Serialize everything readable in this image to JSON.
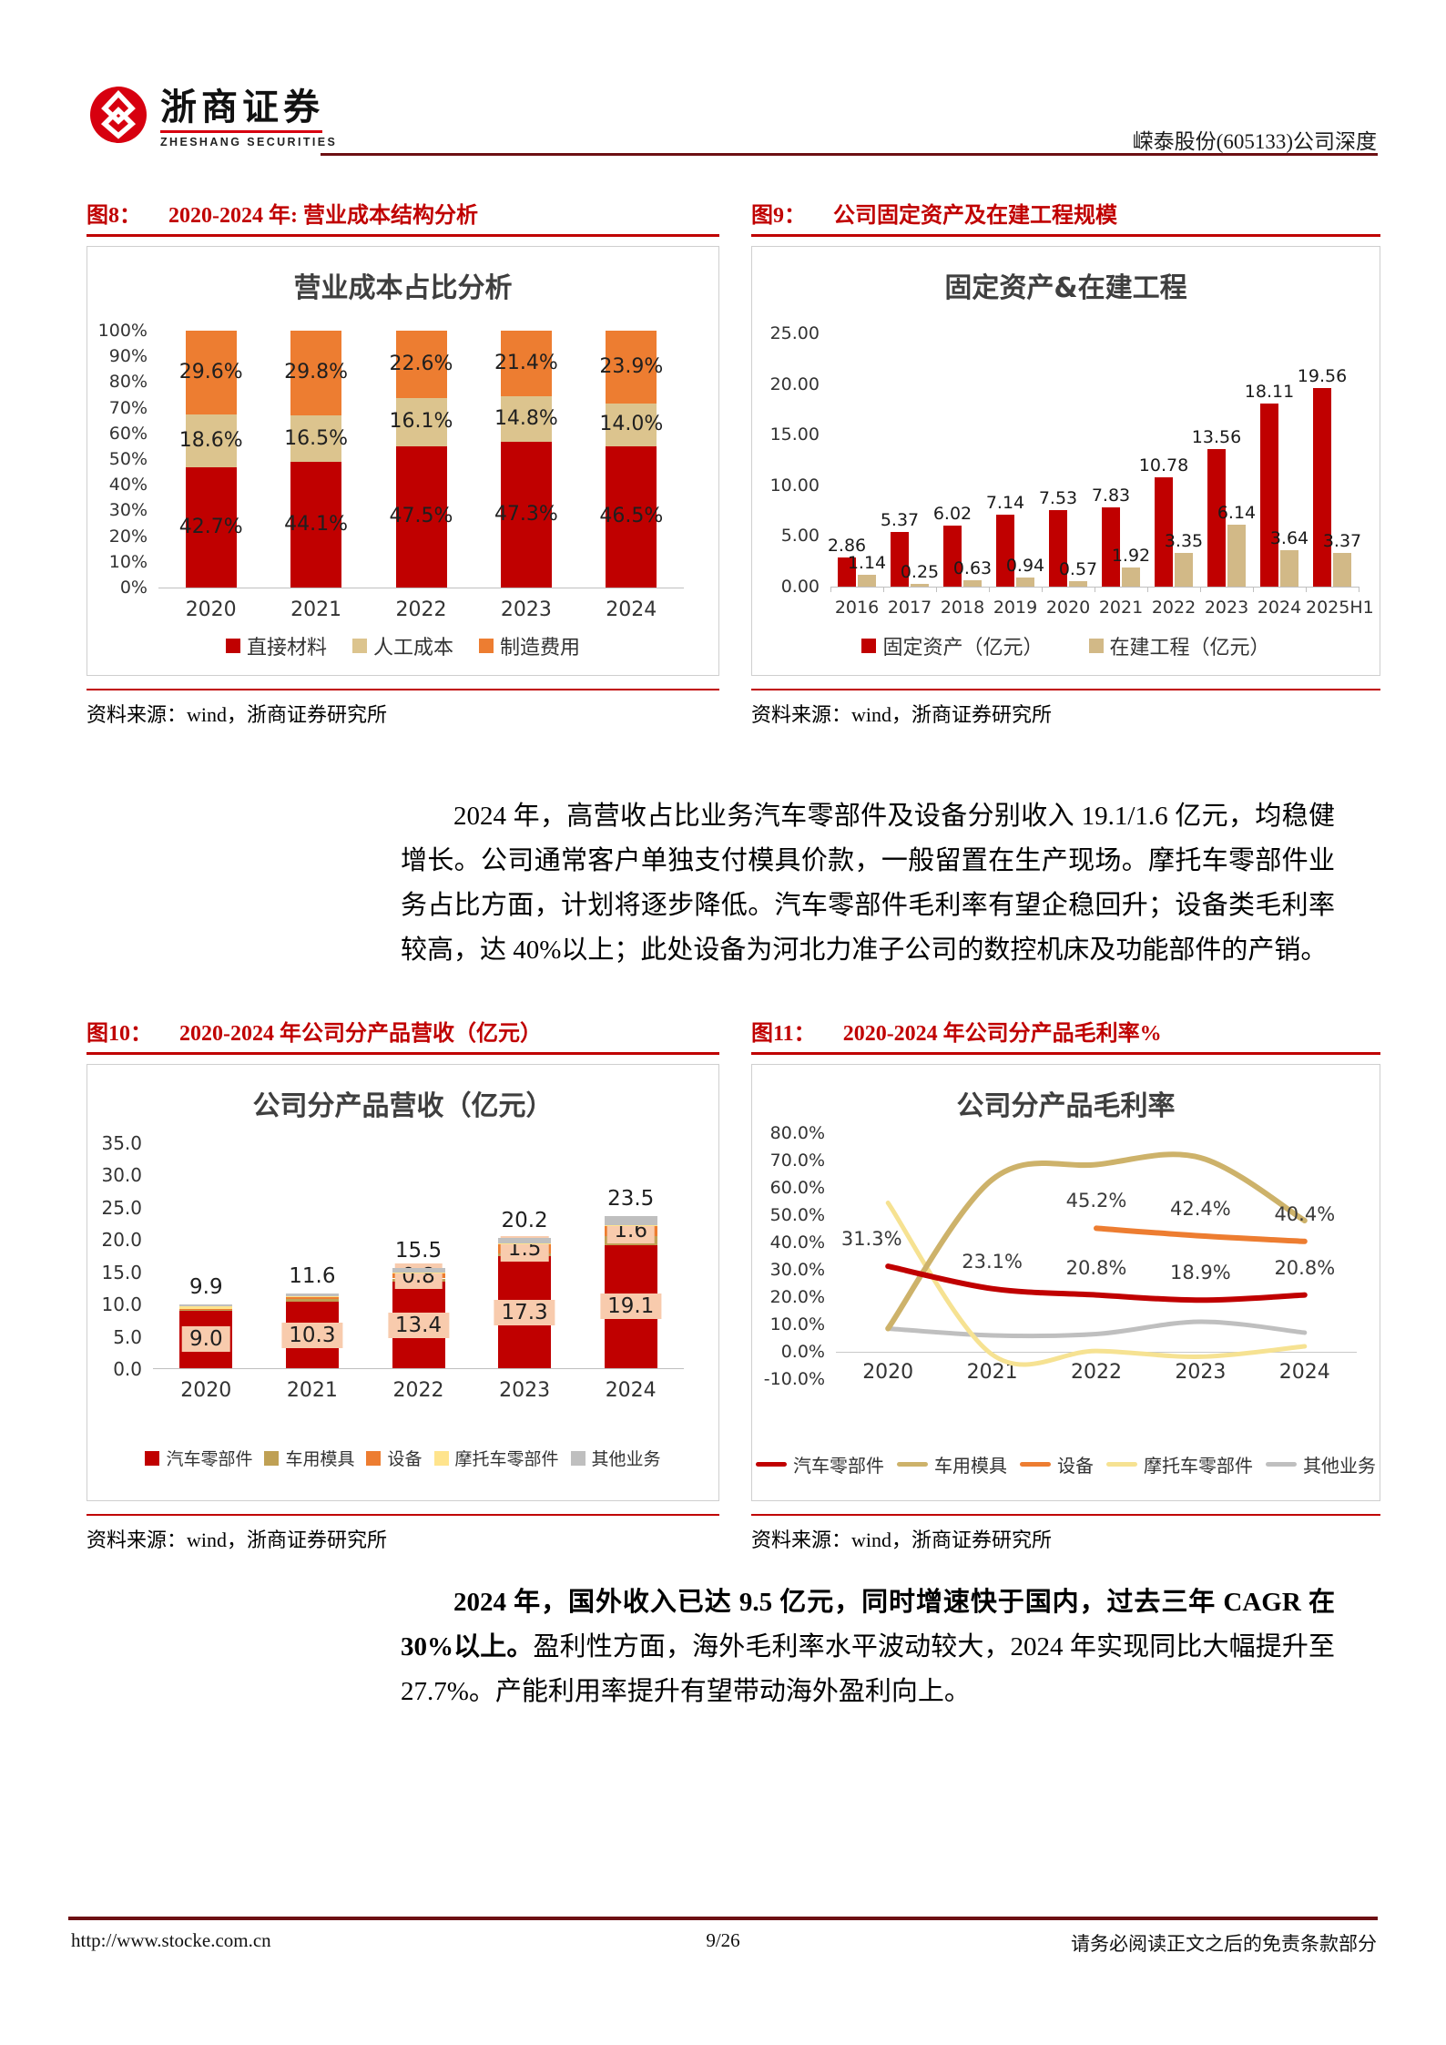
{
  "header": {
    "brand_cn": "浙商证券",
    "brand_en": "ZHESHANG SECURITIES",
    "doc_title": "嵘泰股份(605133)公司深度"
  },
  "figures": {
    "fig8": {
      "label": "图8：",
      "title": "2020-2024 年: 营业成本结构分析",
      "source": "资料来源：wind，浙商证券研究所"
    },
    "fig9": {
      "label": "图9：",
      "title": "公司固定资产及在建工程规模",
      "source": "资料来源：wind，浙商证券研究所"
    },
    "fig10": {
      "label": "图10：",
      "title": "2020-2024 年公司分产品营收（亿元）",
      "source": "资料来源：wind，浙商证券研究所"
    },
    "fig11": {
      "label": "图11：",
      "title": "2020-2024 年公司分产品毛利率%",
      "source": "资料来源：wind，浙商证券研究所"
    }
  },
  "paragraphs": {
    "p1": "2024 年，高营收占比业务汽车零部件及设备分别收入 19.1/1.6 亿元，均稳健增长。公司通常客户单独支付模具价款，一般留置在生产现场。摩托车零部件业务占比方面，计划将逐步降低。汽车零部件毛利率有望企稳回升；设备类毛利率较高，达 40%以上；此处设备为河北力准子公司的数控机床及功能部件的产销。",
    "p2_bold": "2024 年，国外收入已达 9.5 亿元，同时增速快于国内，过去三年 CAGR 在 30%以上。",
    "p2_rest": "盈利性方面，海外毛利率水平波动较大，2024 年实现同比大幅提升至 27.7%。产能利用率提升有望带动海外盈利向上。"
  },
  "footer": {
    "url": "http://www.stocke.com.cn",
    "page": "9/26",
    "disclaimer": "请务必阅读正文之后的免责条款部分"
  },
  "colors": {
    "accent_red": "#c00000",
    "dark_rule": "#6d1013",
    "brand_red": "#d7000f",
    "orange": "#ed7d31",
    "tan_light": "#dcc48e",
    "tan_bar": "#d2b987",
    "gold": "#bfa054",
    "pale_yellow": "#ffe48d",
    "gray": "#bfbfbf",
    "label_box_fill": "#f8cbad"
  },
  "chart_data": [
    {
      "id": "cost-structure",
      "type": "bar",
      "subtype": "stacked-100-percent",
      "title": "营业成本占比分析",
      "categories": [
        "2020",
        "2021",
        "2022",
        "2023",
        "2024"
      ],
      "series": [
        {
          "name": "直接材料",
          "color": "#c00000",
          "values": [
            42.7,
            44.1,
            47.5,
            47.3,
            46.5
          ],
          "labels": [
            "42.7%",
            "44.1%",
            "47.5%",
            "47.3%",
            "46.5%"
          ]
        },
        {
          "name": "人工成本",
          "color": "#dcc48e",
          "values": [
            18.6,
            16.5,
            16.1,
            14.8,
            14.0
          ],
          "labels": [
            "18.6%",
            "16.5%",
            "16.1%",
            "14.8%",
            "14.0%"
          ]
        },
        {
          "name": "制造费用",
          "color": "#ed7d31",
          "values": [
            29.6,
            29.8,
            22.6,
            21.4,
            23.9
          ],
          "labels": [
            "29.6%",
            "29.8%",
            "22.6%",
            "21.4%",
            "23.9%"
          ]
        }
      ],
      "ylim": [
        0,
        100
      ],
      "yticks": [
        "0%",
        "10%",
        "20%",
        "30%",
        "40%",
        "50%",
        "60%",
        "70%",
        "80%",
        "90%",
        "100%"
      ],
      "grid": false,
      "legend_position": "bottom"
    },
    {
      "id": "fixed-assets",
      "type": "bar",
      "subtype": "grouped",
      "title": "固定资产&在建工程",
      "categories": [
        "2016",
        "2017",
        "2018",
        "2019",
        "2020",
        "2021",
        "2022",
        "2023",
        "2024",
        "2025H1"
      ],
      "series": [
        {
          "name": "固定资产（亿元）",
          "color": "#c00000",
          "values": [
            2.86,
            5.37,
            6.02,
            7.14,
            7.53,
            7.83,
            10.78,
            13.56,
            18.11,
            19.56
          ],
          "labels": [
            "2.86",
            "5.37",
            "6.02",
            "7.14",
            "7.53",
            "7.83",
            "10.78",
            "13.56",
            "18.11",
            "19.56"
          ]
        },
        {
          "name": "在建工程（亿元）",
          "color": "#d2b987",
          "values": [
            1.14,
            0.25,
            0.63,
            0.94,
            0.57,
            1.92,
            3.35,
            6.14,
            3.64,
            3.37
          ],
          "labels": [
            "1.14",
            "0.25",
            "0.63",
            "0.94",
            "0.57",
            "1.92",
            "3.35",
            "6.14",
            "3.64",
            "3.37"
          ]
        }
      ],
      "ylim": [
        0,
        25
      ],
      "yticks": [
        "0.00",
        "5.00",
        "10.00",
        "15.00",
        "20.00",
        "25.00"
      ],
      "grid": false,
      "legend_position": "bottom"
    },
    {
      "id": "revenue-by-product",
      "type": "bar",
      "subtype": "stacked",
      "title": "公司分产品营收（亿元）",
      "categories": [
        "2020",
        "2021",
        "2022",
        "2023",
        "2024"
      ],
      "series": [
        {
          "name": "汽车零部件",
          "color": "#c00000",
          "values": [
            9.0,
            10.3,
            13.4,
            17.3,
            19.1
          ],
          "labels": [
            "9.0",
            "10.3",
            "13.4",
            "17.3",
            "19.1"
          ],
          "boxed_labels": true
        },
        {
          "name": "车用模具",
          "color": "#bfa054",
          "values": [
            0.1,
            0.4,
            0.5,
            0.5,
            1.4
          ],
          "labels": [
            null,
            null,
            null,
            null,
            null
          ],
          "estimated": true
        },
        {
          "name": "设备",
          "color": "#ed7d31",
          "values": [
            0.1,
            0.3,
            0.8,
            1.5,
            1.6
          ],
          "labels": [
            null,
            null,
            "0.8",
            "1.5",
            "1.6"
          ],
          "boxed_labels": true
        },
        {
          "name": "摩托车零部件",
          "color": "#ffe48d",
          "values": [
            0.35,
            0.1,
            0.1,
            0.1,
            0.1
          ],
          "labels": [
            null,
            null,
            null,
            null,
            null
          ],
          "estimated": true
        },
        {
          "name": "其他业务",
          "color": "#bfbfbf",
          "values": [
            0.35,
            0.5,
            0.7,
            0.8,
            1.3
          ],
          "labels": [
            null,
            null,
            null,
            null,
            null
          ],
          "estimated": true
        }
      ],
      "totals": [
        9.9,
        11.6,
        15.5,
        20.2,
        23.5
      ],
      "total_labels": [
        "9.9",
        "11.6",
        "15.5",
        "20.2",
        "23.5"
      ],
      "ylim": [
        0,
        35
      ],
      "yticks": [
        "0.0",
        "5.0",
        "10.0",
        "15.0",
        "20.0",
        "25.0",
        "30.0",
        "35.0"
      ],
      "grid": false,
      "legend_position": "bottom"
    },
    {
      "id": "gross-margin-by-product",
      "type": "line",
      "subtype": "smooth",
      "title": "公司分产品毛利率",
      "categories": [
        "2020",
        "2021",
        "2022",
        "2023",
        "2024"
      ],
      "series": [
        {
          "name": "汽车零部件",
          "color": "#c00000",
          "width": 6,
          "values": [
            31.3,
            23.1,
            20.8,
            18.9,
            20.8
          ],
          "labels": [
            "31.3%",
            "23.1%",
            "20.8%",
            "18.9%",
            "20.8%"
          ],
          "label_dx": [
            -18,
            0,
            0,
            0,
            0
          ]
        },
        {
          "name": "车用模具",
          "color": "#cdb26a",
          "width": 6,
          "values": [
            8.5,
            63,
            68.5,
            71,
            48
          ],
          "labels": [
            null,
            null,
            null,
            null,
            null
          ],
          "estimated": true
        },
        {
          "name": "设备",
          "color": "#ed7d31",
          "width": 6,
          "values": [
            null,
            null,
            45.2,
            42.4,
            40.4
          ],
          "labels": [
            null,
            null,
            "45.2%",
            "42.4%",
            "40.4%"
          ]
        },
        {
          "name": "摩托车零部件",
          "color": "#f6e292",
          "width": 5,
          "values": [
            54.5,
            -1.0,
            0.3,
            -1.8,
            2.0
          ],
          "labels": [
            null,
            null,
            null,
            null,
            null
          ],
          "estimated": true
        },
        {
          "name": "其他业务",
          "color": "#bfbfbf",
          "width": 5,
          "values": [
            8.5,
            6.0,
            6.5,
            11.0,
            7.0
          ],
          "labels": [
            null,
            null,
            null,
            null,
            null
          ],
          "estimated": true
        }
      ],
      "ylim": [
        -10,
        80
      ],
      "yticks": [
        "-10.0%",
        "0.0%",
        "10.0%",
        "20.0%",
        "30.0%",
        "40.0%",
        "50.0%",
        "60.0%",
        "70.0%",
        "80.0%"
      ],
      "zero_axis": true,
      "grid": false,
      "legend_position": "bottom"
    }
  ]
}
